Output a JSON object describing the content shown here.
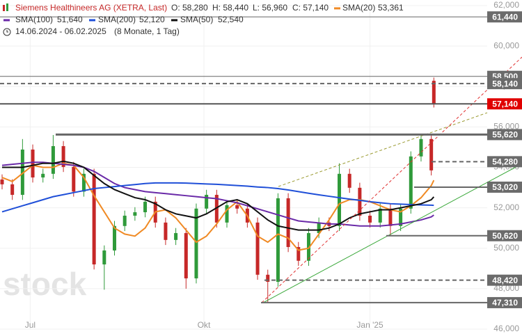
{
  "chart_data": {
    "type": "candlestick",
    "title": "Siemens Healthineers AG (XETRA, Last)",
    "ohlc_labels": [
      "O: 58,280",
      "H: 58,440",
      "L: 56,960",
      "C: 57,140"
    ],
    "period": "14.06.2024 - 06.02.2025",
    "period_note": "(8 Monate, 1 Tag)",
    "watermark": "stock",
    "up_color": "#2f9a3a",
    "down_color": "#c62828",
    "xlim": [
      0,
      170
    ],
    "xticks": [
      {
        "value": 11,
        "label": "Jul"
      },
      {
        "value": 79,
        "label": "Okt"
      },
      {
        "value": 144,
        "label": "Jan '25"
      }
    ],
    "ylim": [
      46000,
      62000
    ],
    "yticks": [
      {
        "value": 46000,
        "label": "46,000"
      },
      {
        "value": 48000,
        "label": "48,000"
      },
      {
        "value": 50000,
        "label": "50,000"
      },
      {
        "value": 52000,
        "label": "52,000"
      },
      {
        "value": 54000,
        "label": "54,000"
      },
      {
        "value": 56000,
        "label": "56,000"
      },
      {
        "value": 58000,
        "label": "58,000"
      },
      {
        "value": 60000,
        "label": "60,000"
      },
      {
        "value": 62000,
        "label": "62,000"
      }
    ],
    "grid": true,
    "candles": {
      "x": [
        0,
        4,
        8,
        12,
        16,
        20,
        24,
        28,
        32,
        36,
        40,
        44,
        48,
        52,
        56,
        60,
        64,
        68,
        72,
        76,
        80,
        84,
        88,
        92,
        96,
        100,
        104,
        108,
        112,
        116,
        120,
        124,
        128,
        132,
        136,
        140,
        144,
        148,
        152,
        156,
        160,
        164,
        168,
        169
      ],
      "open": [
        53400,
        53160,
        52640,
        54880,
        53500,
        53680,
        55050,
        54020,
        52800,
        53680,
        49200,
        49890,
        51100,
        51610,
        51780,
        52300,
        51270,
        50410,
        50750,
        48510,
        51960,
        52640,
        51270,
        52130,
        51960,
        51270,
        48690,
        48340,
        52470,
        50060,
        49380,
        50750,
        51270,
        51100,
        53680,
        52990,
        51610,
        51270,
        51960,
        51100,
        51960,
        54540,
        55400,
        58280
      ],
      "high": [
        53650,
        53410,
        55400,
        55130,
        53930,
        55600,
        55300,
        54270,
        53930,
        53930,
        50140,
        51350,
        51860,
        52030,
        52550,
        52550,
        51520,
        51000,
        51000,
        52210,
        52890,
        52890,
        52380,
        52380,
        52210,
        51520,
        48940,
        52720,
        52720,
        50310,
        51000,
        51520,
        51520,
        54200,
        53930,
        53240,
        51860,
        52210,
        52210,
        52210,
        54790,
        55620,
        55650,
        58440
      ],
      "low": [
        52910,
        52390,
        52390,
        53250,
        53250,
        53430,
        53770,
        52550,
        52550,
        48950,
        47950,
        49640,
        50850,
        51360,
        51530,
        51020,
        50160,
        50160,
        48000,
        48260,
        51710,
        51020,
        51020,
        51710,
        51020,
        48440,
        47310,
        48090,
        49810,
        49130,
        49130,
        50500,
        50850,
        50850,
        52740,
        51360,
        51020,
        51020,
        50620,
        50850,
        51710,
        54290,
        53600,
        56960
      ],
      "close": [
        53160,
        52640,
        54880,
        53500,
        53680,
        55050,
        54020,
        52800,
        53680,
        49200,
        49890,
        51100,
        51610,
        51780,
        52300,
        51270,
        50410,
        50750,
        48510,
        51960,
        52640,
        51270,
        52130,
        51960,
        51270,
        48690,
        48340,
        52470,
        50060,
        49380,
        50750,
        51270,
        51100,
        53680,
        52990,
        51610,
        51270,
        51960,
        51100,
        51960,
        54540,
        55400,
        53850,
        57140
      ]
    },
    "series": [
      {
        "name": "SMA(20)",
        "color": "#f08a24",
        "value_label": "53,361",
        "values": [
          53500,
          53300,
          53700,
          54100,
          54000,
          54000,
          54200,
          54100,
          53500,
          52600,
          51800,
          51000,
          50700,
          50600,
          51000,
          51800,
          51900,
          51500,
          50900,
          50300,
          50600,
          51200,
          51900,
          52300,
          51600,
          50600,
          50300,
          50700,
          50500,
          49900,
          50000,
          50700,
          51400,
          52200,
          52400,
          52400,
          52300,
          52100,
          51900,
          51800,
          52100,
          52500,
          53100,
          53361
        ]
      },
      {
        "name": "SMA(100)",
        "color": "#6a2aa8",
        "value_label": "51,640",
        "values": [
          54100,
          54150,
          54200,
          54250,
          54250,
          54200,
          54150,
          54100,
          54000,
          53800,
          53500,
          53200,
          53000,
          52900,
          52800,
          52750,
          52700,
          52650,
          52600,
          52550,
          52500,
          52450,
          52350,
          52250,
          52100,
          51950,
          51800,
          51650,
          51500,
          51350,
          51300,
          51250,
          51200,
          51200,
          51150,
          51100,
          51100,
          51100,
          51150,
          51200,
          51300,
          51400,
          51550,
          51640
        ]
      },
      {
        "name": "SMA(200)",
        "color": "#1f4fd8",
        "value_label": "52,120",
        "values": [
          51800,
          51950,
          52100,
          52250,
          52400,
          52550,
          52650,
          52750,
          52850,
          52950,
          53000,
          53050,
          53100,
          53150,
          53200,
          53230,
          53230,
          53230,
          53220,
          53200,
          53180,
          53160,
          53130,
          53100,
          53070,
          53030,
          53000,
          52950,
          52880,
          52800,
          52720,
          52640,
          52570,
          52500,
          52430,
          52370,
          52300,
          52250,
          52200,
          52180,
          52160,
          52140,
          52130,
          52120
        ]
      },
      {
        "name": "SMA(50)",
        "color": "#111111",
        "value_label": "52,540",
        "values": [
          54000,
          54000,
          54000,
          54100,
          54200,
          54200,
          54300,
          54200,
          54000,
          53600,
          53200,
          52900,
          52700,
          52500,
          52400,
          52200,
          51900,
          51700,
          51600,
          51500,
          51700,
          52000,
          52300,
          52400,
          52200,
          51800,
          51400,
          51100,
          51000,
          50900,
          50900,
          50900,
          51000,
          51200,
          51500,
          51700,
          51800,
          51900,
          51900,
          52000,
          52100,
          52200,
          52400,
          52540
        ]
      }
    ],
    "levels": [
      {
        "value": 61440,
        "label": "61,440",
        "color": "#6b6b6b"
      },
      {
        "value": 58500,
        "label": "58,500",
        "color": "#6b6b6b"
      },
      {
        "value": 58140,
        "label": "58,140",
        "color": "#6b6b6b"
      },
      {
        "value": 57140,
        "label": "57,140",
        "color": "#e00000"
      },
      {
        "value": 55620,
        "label": "55,620",
        "color": "#6b6b6b"
      },
      {
        "value": 54280,
        "label": "54,280",
        "color": "#6b6b6b"
      },
      {
        "value": 53020,
        "label": "53,020",
        "color": "#6b6b6b"
      },
      {
        "value": 50620,
        "label": "50,620",
        "color": "#6b6b6b"
      },
      {
        "value": 48420,
        "label": "48,420",
        "color": "#6b6b6b"
      },
      {
        "value": 47310,
        "label": "47,310",
        "color": "#6b6b6b"
      }
    ]
  }
}
